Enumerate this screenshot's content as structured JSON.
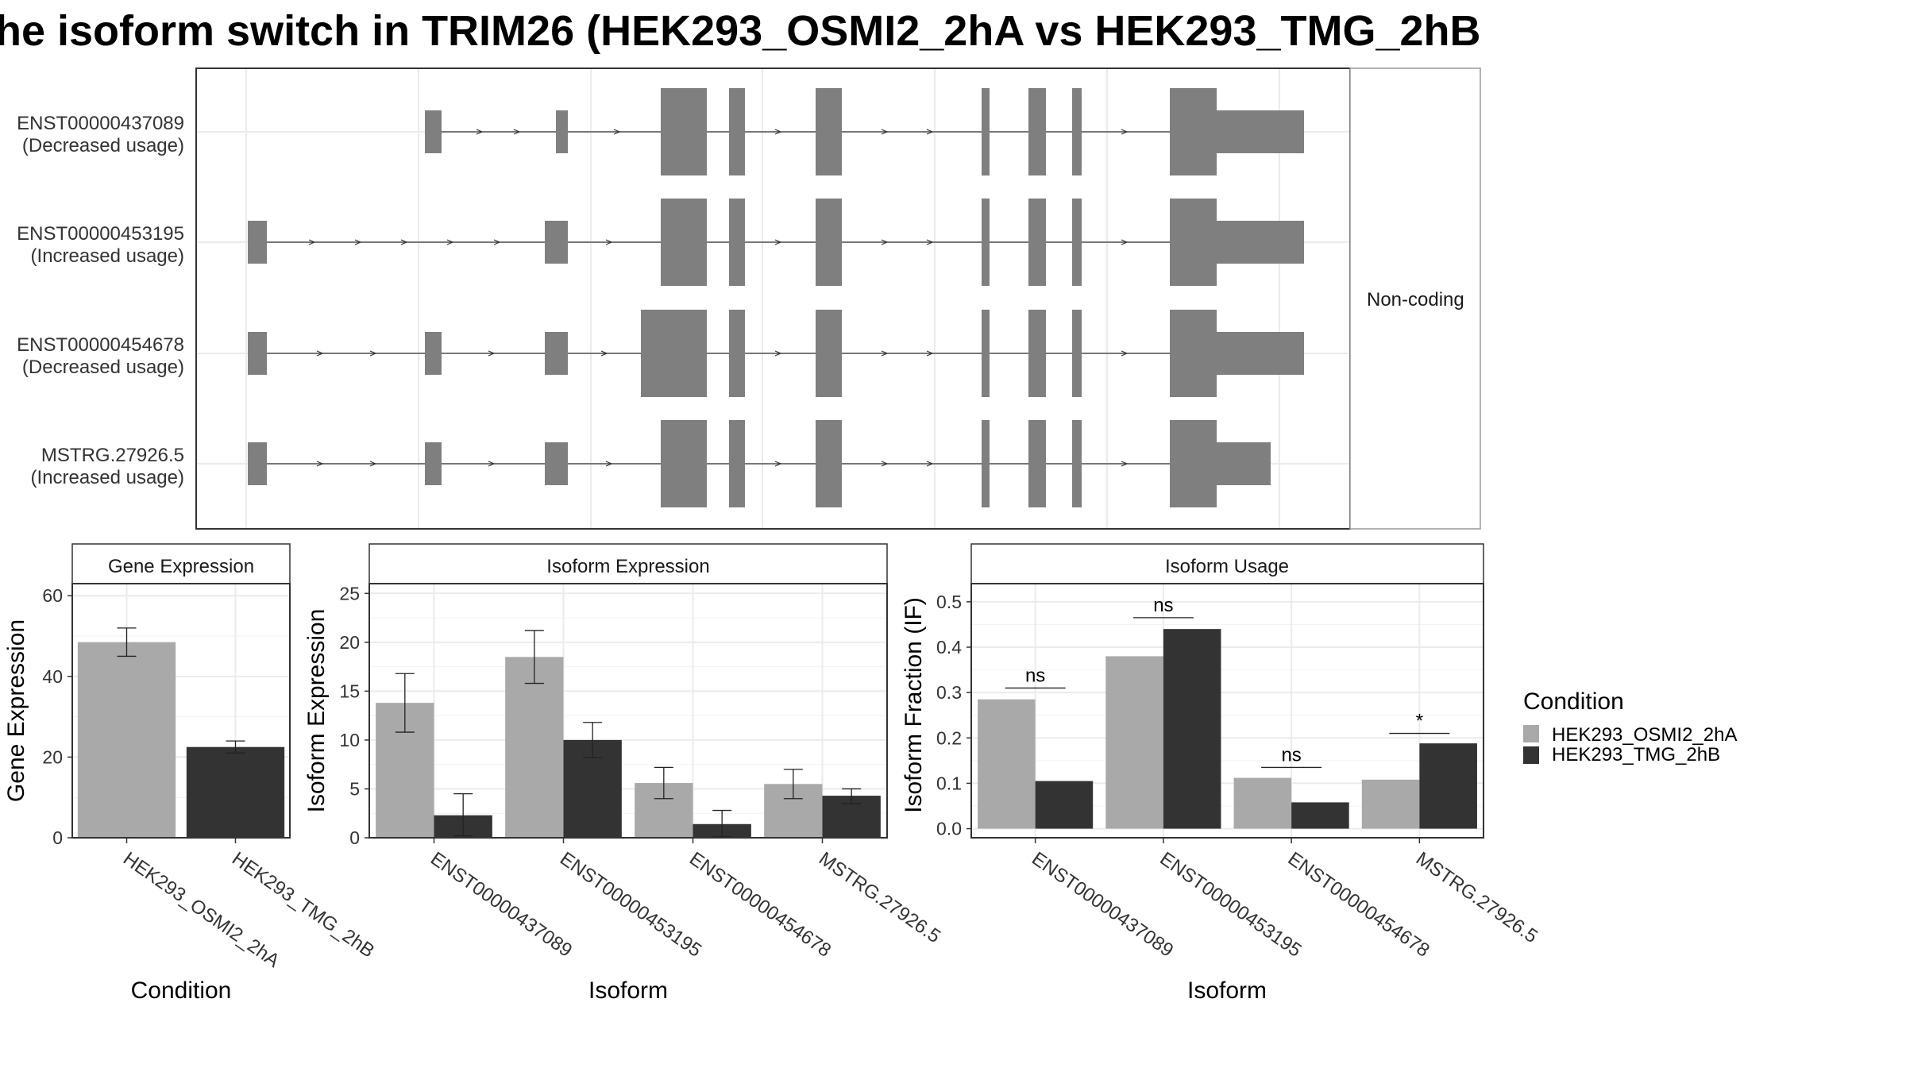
{
  "title": "he isoform switch in TRIM26 (HEK293_OSMI2_2hA vs HEK293_TMG_2hB",
  "colors": {
    "cond_a": "#a9a9a9",
    "cond_b": "#333333",
    "exon": "#7f7f7f",
    "strip_bg": "#ffffff"
  },
  "structure_panel": {
    "strip_label": "Non-coding",
    "transcripts": [
      {
        "id": "ENST00000437089",
        "usage": "(Decreased usage)"
      },
      {
        "id": "ENST00000453195",
        "usage": "(Increased usage)"
      },
      {
        "id": "ENST00000454678",
        "usage": "(Decreased usage)"
      },
      {
        "id": "MSTRG.27926.5",
        "usage": "(Increased usage)"
      }
    ]
  },
  "legend": {
    "title": "Condition",
    "items": [
      "HEK293_OSMI2_2hA",
      "HEK293_TMG_2hB"
    ]
  },
  "chart_data": [
    {
      "type": "bar",
      "title": "Gene Expression",
      "xlabel": "Condition",
      "ylabel": "Gene Expression",
      "ylim": [
        0,
        63
      ],
      "yticks": [
        0,
        20,
        40,
        60
      ],
      "categories": [
        "HEK293_OSMI2_2hA",
        "HEK293_TMG_2hB"
      ],
      "series": [
        {
          "name": "HEK293_OSMI2_2hA",
          "values": [
            48.5,
            null
          ],
          "err_low": [
            45,
            null
          ],
          "err_high": [
            52,
            null
          ]
        },
        {
          "name": "HEK293_TMG_2hB",
          "values": [
            null,
            22.5
          ],
          "err_low": [
            null,
            21
          ],
          "err_high": [
            null,
            24
          ]
        }
      ]
    },
    {
      "type": "bar",
      "title": "Isoform Expression",
      "xlabel": "Isoform",
      "ylabel": "Isoform Expression",
      "ylim": [
        0,
        26
      ],
      "yticks": [
        0,
        5,
        10,
        15,
        20,
        25
      ],
      "categories": [
        "ENST00000437089",
        "ENST00000453195",
        "ENST00000454678",
        "MSTRG.27926.5"
      ],
      "series": [
        {
          "name": "HEK293_OSMI2_2hA",
          "values": [
            13.8,
            18.5,
            5.6,
            5.5
          ],
          "err_low": [
            10.8,
            15.8,
            4.0,
            4.0
          ],
          "err_high": [
            16.8,
            21.2,
            7.2,
            7.0
          ]
        },
        {
          "name": "HEK293_TMG_2hB",
          "values": [
            2.3,
            10.0,
            1.4,
            4.3
          ],
          "err_low": [
            0.2,
            8.2,
            0.1,
            3.5
          ],
          "err_high": [
            4.5,
            11.8,
            2.8,
            5.0
          ]
        }
      ]
    },
    {
      "type": "bar",
      "title": "Isoform Usage",
      "xlabel": "Isoform",
      "ylabel": "Isoform Fraction (IF)",
      "ylim": [
        -0.02,
        0.54
      ],
      "yticks": [
        0.0,
        0.1,
        0.2,
        0.3,
        0.4,
        0.5
      ],
      "ytick_labels": [
        "0.0",
        "0.1",
        "0.2",
        "0.3",
        "0.4",
        "0.5"
      ],
      "categories": [
        "ENST00000437089",
        "ENST00000453195",
        "ENST00000454678",
        "MSTRG.27926.5"
      ],
      "series": [
        {
          "name": "HEK293_OSMI2_2hA",
          "values": [
            0.285,
            0.38,
            0.112,
            0.108
          ]
        },
        {
          "name": "HEK293_TMG_2hB",
          "values": [
            0.105,
            0.44,
            0.058,
            0.188
          ]
        }
      ],
      "significance": [
        {
          "label": "ns",
          "y": 0.31
        },
        {
          "label": "ns",
          "y": 0.465
        },
        {
          "label": "ns",
          "y": 0.135
        },
        {
          "label": "*",
          "y": 0.21
        }
      ]
    }
  ]
}
